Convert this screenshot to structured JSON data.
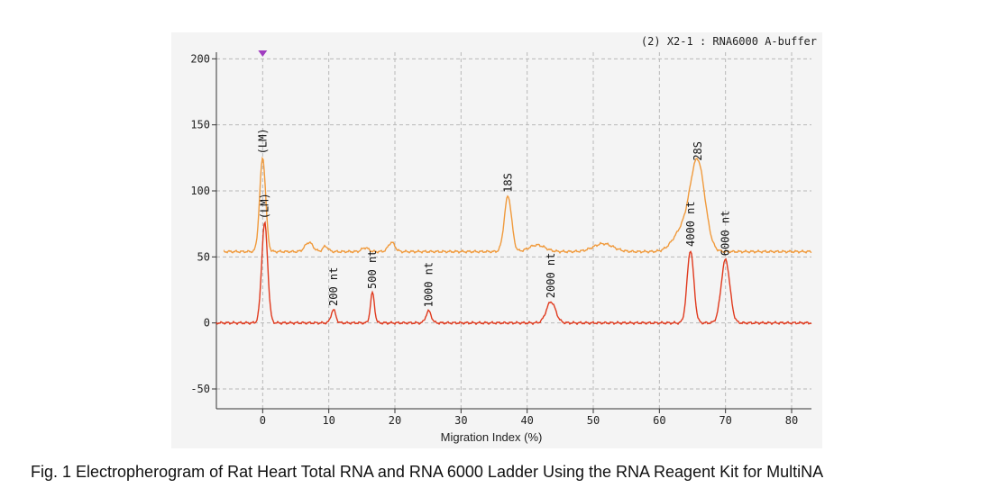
{
  "chart_data": {
    "type": "line",
    "header": "(2) X2-1 : RNA6000  A-buffer",
    "xlabel": "Migration Index (%)",
    "ylabel": "",
    "xlim": [
      -7,
      83
    ],
    "ylim": [
      -65,
      205
    ],
    "xticks": [
      0,
      10,
      20,
      30,
      40,
      50,
      60,
      70,
      80
    ],
    "yticks": [
      200,
      150,
      100,
      50,
      0,
      -50
    ],
    "grid": true,
    "marker_x": 0,
    "series": [
      {
        "key": "rat_heart_total_rna",
        "color": "#f09a3c",
        "baseline": 54,
        "peaks": [
          {
            "x": 0,
            "height": 125,
            "width": 0.45,
            "label": "(LM)"
          },
          {
            "x": 7,
            "height": 61,
            "width": 0.6
          },
          {
            "x": 9.5,
            "height": 58,
            "width": 0.4
          },
          {
            "x": 15.5,
            "height": 57,
            "width": 0.5
          },
          {
            "x": 19.5,
            "height": 61,
            "width": 0.5
          },
          {
            "x": 37.1,
            "height": 96,
            "width": 0.55,
            "label": "18S"
          },
          {
            "x": 41.5,
            "height": 59,
            "width": 1.2
          },
          {
            "x": 51.5,
            "height": 60,
            "width": 1.5
          },
          {
            "x": 63.5,
            "height": 70,
            "width": 1.4
          },
          {
            "x": 65.8,
            "height": 120,
            "width": 1.1,
            "label": "28S"
          }
        ]
      },
      {
        "key": "rna_6000_ladder",
        "color": "#e03a1e",
        "baseline": 0,
        "peaks": [
          {
            "x": 0.3,
            "height": 76,
            "width": 0.45,
            "label": "(LM)"
          },
          {
            "x": 10.7,
            "height": 10,
            "width": 0.35,
            "label": "200 nt"
          },
          {
            "x": 16.6,
            "height": 23,
            "width": 0.3,
            "label": "500 nt"
          },
          {
            "x": 25.1,
            "height": 9,
            "width": 0.4,
            "label": "1000 nt"
          },
          {
            "x": 43.6,
            "height": 16,
            "width": 0.7,
            "label": "2000 nt"
          },
          {
            "x": 64.7,
            "height": 55,
            "width": 0.5,
            "label": "4000 nt"
          },
          {
            "x": 70.0,
            "height": 48,
            "width": 0.65,
            "label": "6000 nt"
          }
        ]
      }
    ]
  },
  "caption": "Fig. 1  Electropherogram of Rat Heart Total RNA and RNA 6000 Ladder Using the RNA Reagent Kit for MultiNA"
}
